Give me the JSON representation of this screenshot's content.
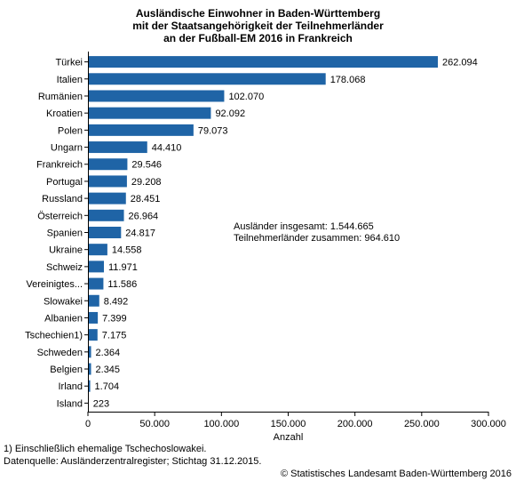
{
  "title_lines": [
    "Ausländische Einwohner in Baden-Württemberg",
    "mit der Staatsangehörigkeit der Teilnehmerländer",
    "an der Fußball-EM 2016 in Frankreich"
  ],
  "colors": {
    "bar": "#1f64a6",
    "axis": "#000000"
  },
  "chart_data": {
    "type": "bar",
    "orientation": "horizontal",
    "categories": [
      "Türkei",
      "Italien",
      "Rumänien",
      "Kroatien",
      "Polen",
      "Ungarn",
      "Frankreich",
      "Portugal",
      "Russland",
      "Österreich",
      "Spanien",
      "Ukraine",
      "Schweiz",
      "Vereinigtes...",
      "Slowakei",
      "Albanien",
      "Tschechien1)",
      "Schweden",
      "Belgien",
      "Irland",
      "Island"
    ],
    "values": [
      262094,
      178068,
      102070,
      92092,
      79073,
      44410,
      29546,
      29208,
      28451,
      26964,
      24817,
      14558,
      11971,
      11586,
      8492,
      7399,
      7175,
      2364,
      2345,
      1704,
      223
    ],
    "value_labels": [
      "262.094",
      "178.068",
      "102.070",
      "92.092",
      "79.073",
      "44.410",
      "29.546",
      "29.208",
      "28.451",
      "26.964",
      "24.817",
      "14.558",
      "11.971",
      "11.586",
      "8.492",
      "7.399",
      "7.175",
      "2.364",
      "2.345",
      "1.704",
      "223"
    ],
    "xlabel": "Anzahl",
    "xlim": [
      0,
      300000
    ],
    "xticks": [
      0,
      50000,
      100000,
      150000,
      200000,
      250000,
      300000
    ],
    "xtick_labels": [
      "0",
      "50.000",
      "100.000",
      "150.000",
      "200.000",
      "250.000",
      "300.000"
    ],
    "grid": false
  },
  "infobox": {
    "line1": "Ausländer insgesamt: 1.544.665",
    "line2": "Teilnehmerländer zusammen: 964.610"
  },
  "footnote": "1) Einschließlich ehemalige Tschechoslowakei.",
  "source": "Datenquelle: Ausländerzentralregister; Stichtag 31.12.2015.",
  "copyright": "© Statistisches Landesamt Baden-Württemberg 2016"
}
